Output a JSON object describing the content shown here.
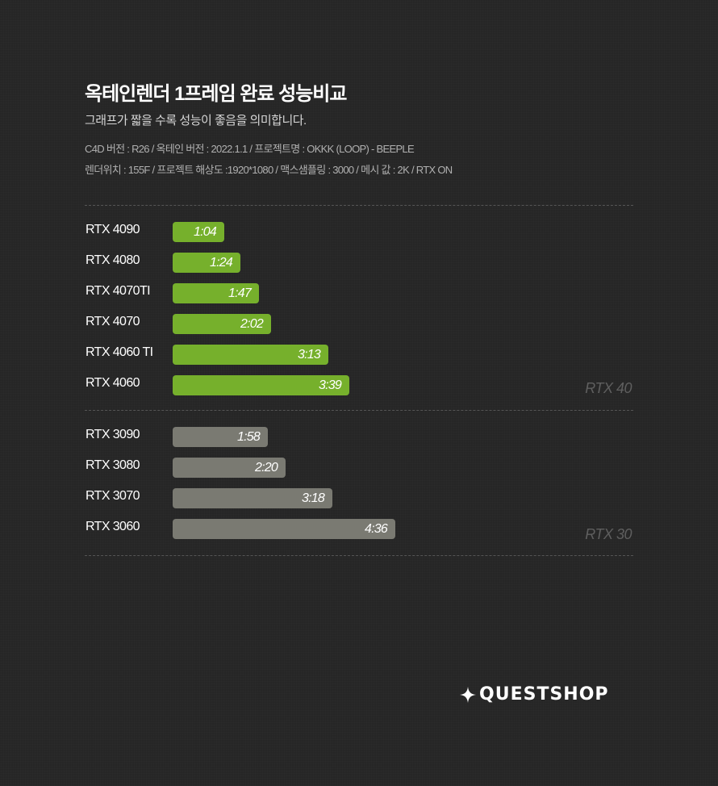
{
  "header": {
    "title": "옥테인렌더 1프레임 완료 성능비교",
    "subtitle": "그래프가 짧을 수록 성능이 좋음을 의미합니다.",
    "meta_line1": "C4D 버전 : R26 / 옥테인 버전 : 2022.1.1 / 프로젝트명 : OKKK (LOOP) - BEEPLE",
    "meta_line2": "렌더위치 : 155F / 프로젝트 해상도 :1920*1080 / 맥스샘플링 : 3000 / 메시 값 : 2K / RTX ON"
  },
  "colors": {
    "rtx40": "#76b02c",
    "rtx30": "#7a7a72"
  },
  "chart_data": {
    "type": "bar",
    "orientation": "horizontal",
    "unit": "minutes:seconds",
    "groups": [
      {
        "name": "RTX 40",
        "categories": [
          "RTX 4090",
          "RTX 4080",
          "RTX 4070TI",
          "RTX 4070",
          "RTX 4060 TI",
          "RTX 4060"
        ],
        "labels": [
          "1:04",
          "1:24",
          "1:47",
          "2:02",
          "3:13",
          "3:39"
        ],
        "values_seconds": [
          64,
          84,
          107,
          122,
          193,
          219
        ]
      },
      {
        "name": "RTX 30",
        "categories": [
          "RTX 3090",
          "RTX 3080",
          "RTX 3070",
          "RTX 3060"
        ],
        "labels": [
          "1:58",
          "2:20",
          "3:18",
          "4:36"
        ],
        "values_seconds": [
          118,
          140,
          198,
          276
        ]
      }
    ]
  },
  "logo": {
    "text": "QUESTSHOP",
    "icon": "sparkle-icon"
  }
}
